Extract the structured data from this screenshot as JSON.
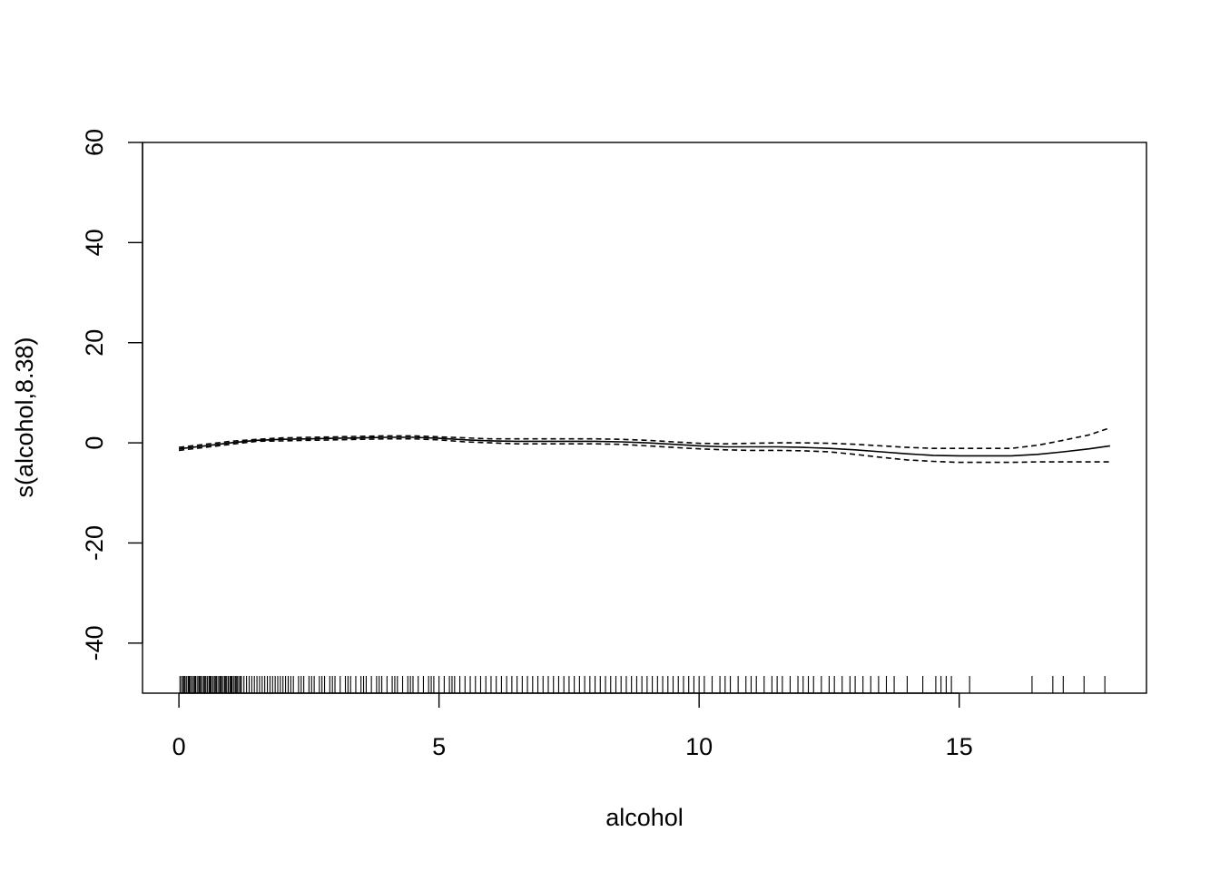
{
  "chart_data": {
    "type": "line",
    "title": "",
    "xlabel": "alcohol",
    "ylabel": "s(alcohol,8.38)",
    "xlim": [
      -0.7,
      18.6
    ],
    "ylim": [
      -50,
      60
    ],
    "x_ticks": [
      0,
      5,
      10,
      15
    ],
    "y_ticks": [
      -40,
      -20,
      0,
      20,
      40,
      60
    ],
    "grid": false,
    "legend": "none",
    "line_color": "#000000",
    "series": [
      {
        "style": "solid",
        "x": [
          0,
          0.5,
          1,
          1.5,
          2,
          2.5,
          3,
          3.5,
          4,
          4.5,
          5,
          5.5,
          6,
          6.5,
          7,
          7.5,
          8,
          8.5,
          9,
          9.5,
          10,
          10.5,
          11,
          11.5,
          12,
          12.5,
          13,
          13.5,
          14,
          14.5,
          15,
          15.5,
          16,
          16.5,
          17,
          17.5,
          17.9
        ],
        "values": [
          -1.2,
          -0.6,
          0.0,
          0.5,
          0.7,
          0.8,
          0.9,
          1.0,
          1.1,
          1.1,
          0.9,
          0.6,
          0.4,
          0.3,
          0.3,
          0.3,
          0.3,
          0.2,
          0.0,
          -0.3,
          -0.6,
          -0.8,
          -0.8,
          -0.8,
          -0.9,
          -1.1,
          -1.4,
          -1.8,
          -2.2,
          -2.5,
          -2.6,
          -2.6,
          -2.6,
          -2.3,
          -1.8,
          -1.2,
          -0.6
        ]
      },
      {
        "style": "dashed",
        "x": [
          0,
          0.5,
          1,
          1.5,
          2,
          2.5,
          3,
          3.5,
          4,
          4.5,
          5,
          5.5,
          6,
          6.5,
          7,
          7.5,
          8,
          8.5,
          9,
          9.5,
          10,
          10.5,
          11,
          11.5,
          12,
          12.5,
          13,
          13.5,
          14,
          14.5,
          15,
          15.5,
          16,
          16.5,
          17,
          17.5,
          17.9
        ],
        "values": [
          -0.9,
          -0.3,
          0.3,
          0.7,
          1.0,
          1.1,
          1.2,
          1.3,
          1.4,
          1.4,
          1.2,
          1.0,
          0.8,
          0.8,
          0.8,
          0.8,
          0.8,
          0.7,
          0.5,
          0.2,
          -0.1,
          -0.2,
          -0.1,
          0.0,
          0.0,
          -0.1,
          -0.3,
          -0.6,
          -0.9,
          -1.1,
          -1.1,
          -1.1,
          -1.1,
          -0.5,
          0.5,
          1.6,
          3.0
        ]
      },
      {
        "style": "dashed",
        "x": [
          0,
          0.5,
          1,
          1.5,
          2,
          2.5,
          3,
          3.5,
          4,
          4.5,
          5,
          5.5,
          6,
          6.5,
          7,
          7.5,
          8,
          8.5,
          9,
          9.5,
          10,
          10.5,
          11,
          11.5,
          12,
          12.5,
          13,
          13.5,
          14,
          14.5,
          15,
          15.5,
          16,
          16.5,
          17,
          17.5,
          17.9
        ],
        "values": [
          -1.5,
          -0.9,
          -0.3,
          0.3,
          0.4,
          0.5,
          0.6,
          0.7,
          0.8,
          0.8,
          0.6,
          0.2,
          0.0,
          -0.2,
          -0.2,
          -0.2,
          -0.2,
          -0.3,
          -0.6,
          -0.9,
          -1.2,
          -1.4,
          -1.5,
          -1.5,
          -1.6,
          -1.8,
          -2.3,
          -2.9,
          -3.4,
          -3.7,
          -3.9,
          -3.9,
          -3.9,
          -3.8,
          -3.8,
          -3.8,
          -3.8
        ]
      }
    ],
    "rug": [
      0.02,
      0.05,
      0.08,
      0.1,
      0.12,
      0.15,
      0.18,
      0.2,
      0.22,
      0.25,
      0.28,
      0.3,
      0.32,
      0.35,
      0.38,
      0.4,
      0.42,
      0.45,
      0.48,
      0.5,
      0.52,
      0.55,
      0.58,
      0.6,
      0.62,
      0.65,
      0.68,
      0.7,
      0.72,
      0.75,
      0.78,
      0.8,
      0.82,
      0.85,
      0.88,
      0.9,
      0.92,
      0.95,
      0.98,
      1.0,
      1.02,
      1.05,
      1.08,
      1.1,
      1.12,
      1.15,
      1.18,
      1.2,
      1.25,
      1.3,
      1.35,
      1.4,
      1.45,
      1.5,
      1.55,
      1.6,
      1.65,
      1.7,
      1.75,
      1.8,
      1.85,
      1.9,
      1.95,
      2.0,
      2.05,
      2.1,
      2.15,
      2.2,
      2.3,
      2.35,
      2.4,
      2.5,
      2.55,
      2.6,
      2.7,
      2.75,
      2.8,
      2.9,
      2.95,
      3.0,
      3.1,
      3.2,
      3.25,
      3.3,
      3.4,
      3.5,
      3.55,
      3.6,
      3.7,
      3.8,
      3.85,
      3.9,
      4.0,
      4.1,
      4.15,
      4.2,
      4.3,
      4.4,
      4.45,
      4.5,
      4.6,
      4.7,
      4.8,
      4.85,
      4.9,
      5.0,
      5.1,
      5.2,
      5.25,
      5.3,
      5.4,
      5.5,
      5.6,
      5.7,
      5.8,
      5.9,
      6.0,
      6.1,
      6.2,
      6.3,
      6.4,
      6.5,
      6.6,
      6.7,
      6.8,
      6.9,
      7.0,
      7.1,
      7.2,
      7.3,
      7.4,
      7.5,
      7.6,
      7.7,
      7.8,
      7.9,
      8.0,
      8.1,
      8.2,
      8.3,
      8.4,
      8.5,
      8.6,
      8.7,
      8.8,
      8.9,
      9.0,
      9.1,
      9.2,
      9.3,
      9.4,
      9.5,
      9.6,
      9.7,
      9.8,
      9.9,
      10.0,
      10.1,
      10.25,
      10.4,
      10.5,
      10.6,
      10.75,
      10.9,
      11.0,
      11.1,
      11.25,
      11.4,
      11.5,
      11.6,
      11.75,
      11.9,
      12.0,
      12.1,
      12.2,
      12.35,
      12.5,
      12.6,
      12.75,
      12.9,
      13.0,
      13.15,
      13.3,
      13.45,
      13.6,
      13.75,
      14.0,
      14.3,
      14.55,
      14.65,
      14.75,
      14.85,
      15.2,
      16.4,
      16.8,
      17.0,
      17.4,
      17.8
    ]
  }
}
